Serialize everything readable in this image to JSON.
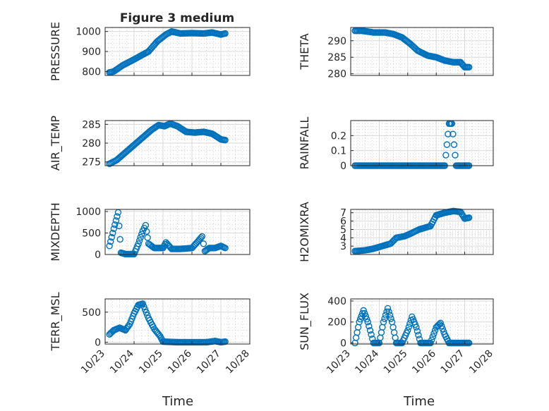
{
  "figure": {
    "title": "Figure 3 medium",
    "xlabel": "Time"
  },
  "chart_data": [
    {
      "type": "scatter",
      "panel": "pressure",
      "ylabel": "PRESSURE",
      "ylim": [
        780,
        1020
      ],
      "yticks": [
        "800",
        "900",
        "1000"
      ],
      "ytick_values": [
        800,
        900,
        1000
      ],
      "xticks": [
        "10/23",
        "10/24",
        "10/25",
        "10/26",
        "10/27",
        "10/28"
      ],
      "xlim_days": [
        23,
        28
      ],
      "grid": true,
      "x": [
        23.15,
        23.3,
        23.6,
        24.0,
        24.5,
        24.8,
        25.1,
        25.3,
        25.6,
        26.0,
        26.4,
        26.7,
        27.0,
        27.15
      ],
      "y": [
        795,
        800,
        830,
        860,
        900,
        950,
        985,
        1000,
        990,
        992,
        990,
        995,
        985,
        990
      ]
    },
    {
      "type": "scatter",
      "panel": "theta",
      "ylabel": "THETA",
      "ylim": [
        279.5,
        294
      ],
      "yticks": [
        "280",
        "285",
        "290"
      ],
      "ytick_values": [
        280,
        285,
        290
      ],
      "xticks": [
        "10/23",
        "10/24",
        "10/25",
        "10/26",
        "10/27",
        "10/28"
      ],
      "xlim_days": [
        23,
        28
      ],
      "grid": true,
      "x": [
        23.15,
        23.4,
        23.8,
        24.2,
        24.5,
        24.8,
        25.1,
        25.35,
        25.7,
        26.0,
        26.3,
        26.6,
        26.85,
        27.0,
        27.15
      ],
      "y": [
        293,
        293,
        292.5,
        292.5,
        292,
        291,
        289,
        287,
        285.5,
        285,
        284,
        283.5,
        283.5,
        282,
        282
      ]
    },
    {
      "type": "scatter",
      "panel": "air-temp",
      "ylabel": "AIR_TEMP",
      "ylim": [
        274,
        286
      ],
      "yticks": [
        "275",
        "280",
        "285"
      ],
      "ytick_values": [
        275,
        280,
        285
      ],
      "xticks": [
        "10/23",
        "10/24",
        "10/25",
        "10/26",
        "10/27",
        "10/28"
      ],
      "xlim_days": [
        23,
        28
      ],
      "grid": true,
      "x": [
        23.15,
        23.4,
        23.7,
        24.0,
        24.3,
        24.6,
        24.85,
        25.05,
        25.25,
        25.5,
        25.8,
        26.1,
        26.4,
        26.7,
        27.0,
        27.15
      ],
      "y": [
        274.5,
        275.5,
        277.5,
        279.5,
        281.5,
        283.5,
        284.8,
        284.5,
        285.2,
        284.5,
        283,
        282.8,
        283,
        282.5,
        281,
        280.8
      ]
    },
    {
      "type": "scatter",
      "panel": "rainfall",
      "ylabel": "RAINFALL",
      "ylim": [
        0,
        0.3
      ],
      "yticks": [
        "0",
        "0.1",
        "0.2"
      ],
      "ytick_values": [
        0,
        0.1,
        0.2
      ],
      "xticks": [
        "10/23",
        "10/24",
        "10/25",
        "10/26",
        "10/27",
        "10/28"
      ],
      "xlim_days": [
        23,
        28
      ],
      "grid": true,
      "x": [
        23.15,
        23.6,
        24.0,
        24.5,
        25.0,
        25.5,
        26.0,
        26.3,
        26.45,
        26.55,
        26.7,
        27.0,
        27.15
      ],
      "y": [
        0,
        0,
        0,
        0,
        0,
        0,
        0,
        0,
        0.28,
        0.28,
        0,
        0,
        0
      ]
    },
    {
      "type": "scatter",
      "panel": "mixdepth",
      "ylabel": "MIXDEPTH",
      "ylim": [
        0,
        1050
      ],
      "yticks": [
        "0",
        "500",
        "1000"
      ],
      "ytick_values": [
        0,
        500,
        1000
      ],
      "xticks": [
        "10/23",
        "10/24",
        "10/25",
        "10/26",
        "10/27",
        "10/28"
      ],
      "xlim_days": [
        23,
        28
      ],
      "grid": true,
      "x": [
        23.15,
        23.3,
        23.45,
        23.55,
        23.7,
        24.0,
        24.15,
        24.3,
        24.4,
        24.5,
        24.7,
        25.0,
        25.1,
        25.3,
        25.6,
        26.0,
        26.2,
        26.35,
        26.45,
        26.6,
        26.8,
        27.0,
        27.15
      ],
      "y": [
        200,
        600,
        980,
        40,
        10,
        10,
        250,
        550,
        680,
        250,
        150,
        150,
        280,
        130,
        130,
        150,
        300,
        420,
        80,
        150,
        150,
        200,
        150
      ]
    },
    {
      "type": "scatter",
      "panel": "h2omixra",
      "ylabel": "H2OMIXRA",
      "ylim": [
        2,
        7.4
      ],
      "yticks": [
        "3",
        "4",
        "5",
        "6",
        "7"
      ],
      "ytick_values": [
        3,
        4,
        5,
        6,
        7
      ],
      "xticks": [
        "10/23",
        "10/24",
        "10/25",
        "10/26",
        "10/27",
        "10/28"
      ],
      "xlim_days": [
        23,
        28
      ],
      "grid": true,
      "x": [
        23.15,
        23.5,
        23.8,
        24.1,
        24.4,
        24.6,
        24.9,
        25.1,
        25.4,
        25.8,
        26.0,
        26.3,
        26.6,
        26.85,
        27.0,
        27.15
      ],
      "y": [
        2.4,
        2.5,
        2.7,
        3.0,
        3.3,
        4.0,
        4.2,
        4.5,
        5.0,
        5.4,
        6.7,
        7.0,
        7.2,
        7.1,
        6.3,
        6.4
      ]
    },
    {
      "type": "scatter",
      "panel": "terr-msl",
      "ylabel": "TERR_MSL",
      "ylim": [
        -30,
        720
      ],
      "yticks": [
        "0",
        "500"
      ],
      "ytick_values": [
        0,
        500
      ],
      "xticks": [
        "10/23",
        "10/24",
        "10/25",
        "10/26",
        "10/27",
        "10/28"
      ],
      "xlim_days": [
        23,
        28
      ],
      "grid": true,
      "x": [
        23.15,
        23.3,
        23.5,
        23.7,
        23.85,
        24.0,
        24.15,
        24.3,
        24.5,
        24.7,
        24.9,
        25.0,
        25.5,
        26.0,
        26.5,
        26.8,
        27.0,
        27.15
      ],
      "y": [
        130,
        200,
        240,
        200,
        300,
        480,
        620,
        640,
        400,
        220,
        100,
        10,
        0,
        0,
        0,
        20,
        0,
        10
      ]
    },
    {
      "type": "scatter",
      "panel": "sun-flux",
      "ylabel": "SUN_FLUX",
      "ylim": [
        -10,
        420
      ],
      "yticks": [
        "0",
        "200",
        "400"
      ],
      "ytick_values": [
        0,
        200,
        400
      ],
      "xticks": [
        "10/23",
        "10/24",
        "10/25",
        "10/26",
        "10/27",
        "10/28"
      ],
      "xlim_days": [
        23,
        28
      ],
      "grid": true,
      "x": [
        23.15,
        23.3,
        23.45,
        23.6,
        23.8,
        24.0,
        24.15,
        24.3,
        24.45,
        24.6,
        24.8,
        25.0,
        25.15,
        25.3,
        25.45,
        25.6,
        25.8,
        26.0,
        26.15,
        26.3,
        26.45,
        26.6,
        26.8,
        27.0,
        27.15
      ],
      "y": [
        0,
        200,
        310,
        200,
        0,
        0,
        200,
        330,
        200,
        0,
        0,
        120,
        250,
        150,
        0,
        0,
        0,
        150,
        190,
        80,
        0,
        0,
        0,
        0,
        0
      ]
    }
  ]
}
